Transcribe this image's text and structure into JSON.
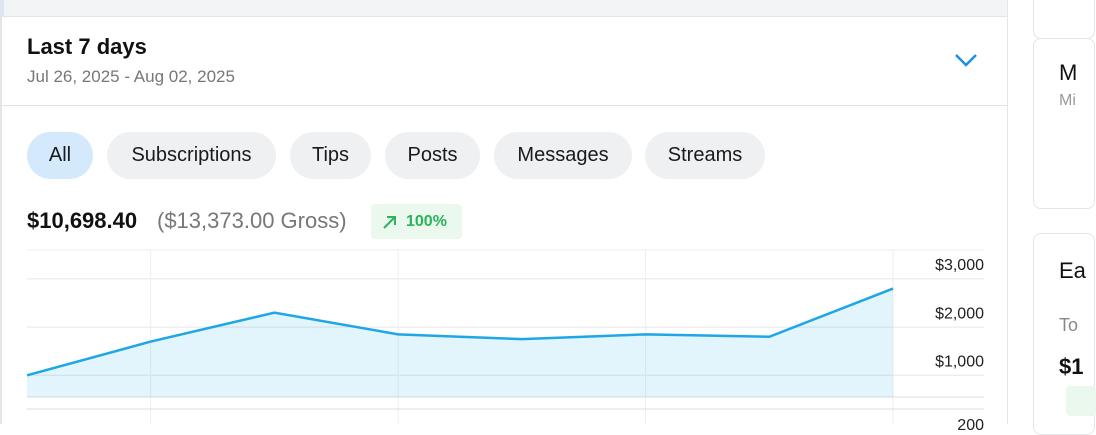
{
  "header": {
    "title": "Last 7 days",
    "date_range": "Jul 26, 2025 - Aug 02, 2025"
  },
  "filters": [
    "All",
    "Subscriptions",
    "Tips",
    "Posts",
    "Messages",
    "Streams"
  ],
  "summary": {
    "net": "$10,698.40",
    "gross": "($13,373.00 Gross)",
    "change": "100%"
  },
  "chart_data": {
    "type": "line",
    "categories": [
      null,
      null,
      null,
      null,
      null,
      null,
      null,
      null
    ],
    "values": [
      750,
      1450,
      2050,
      1600,
      1500,
      1600,
      1550,
      2550
    ],
    "color": "#1ea7e4",
    "ylim": [
      300,
      3350
    ],
    "yticks": [
      {
        "value": 1000,
        "label": "$1,000"
      },
      {
        "value": 2000,
        "label": "$2,000"
      },
      {
        "value": 3000,
        "label": "$3,000"
      }
    ],
    "grid": true
  },
  "next_chart_tick": "200",
  "sidebar": {
    "card1_title": "M",
    "card1_sub": "Mi",
    "card2_title": "Ea",
    "card2_label": "To",
    "card2_value": "$1"
  }
}
